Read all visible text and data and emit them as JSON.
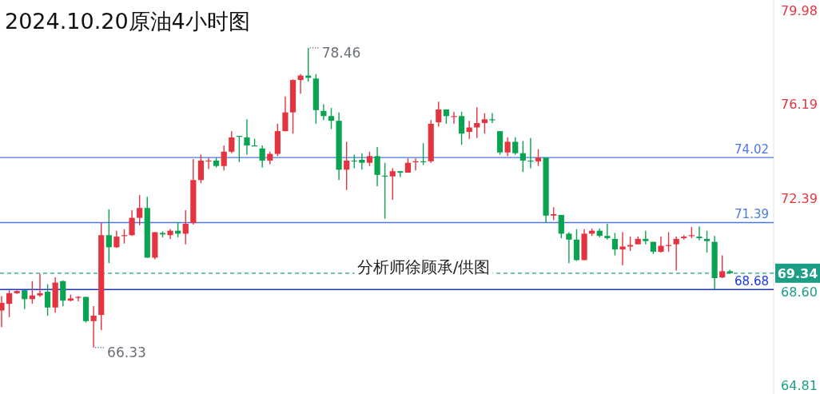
{
  "chart_data": {
    "type": "candlestick",
    "title": "2024.10.20原油4小时图",
    "annotations": [
      "分析师徐顾承/供图",
      "78.46",
      "66.33"
    ],
    "categories": [
      null,
      null,
      null,
      null,
      null,
      null,
      null,
      null,
      null,
      null,
      null,
      null,
      null,
      null,
      null,
      null,
      null,
      null,
      null,
      null,
      null,
      null,
      null,
      null,
      null,
      null,
      null,
      null,
      null,
      null,
      null,
      null,
      null,
      null,
      null,
      null,
      null,
      null,
      null,
      null,
      null,
      null,
      null,
      null,
      null,
      null,
      null,
      null,
      null,
      null,
      null,
      null,
      null,
      null,
      null,
      null,
      null,
      null,
      null,
      null,
      null,
      null,
      null,
      null,
      null,
      null,
      null,
      null,
      null,
      null,
      null,
      null,
      null,
      null,
      null,
      null,
      null,
      null,
      null,
      null,
      null,
      null,
      null,
      null,
      null,
      null,
      null,
      null,
      null,
      null,
      null,
      null,
      null,
      null,
      null,
      null
    ],
    "ohlc": [
      [
        67.83,
        68.41,
        67.16,
        68.14
      ],
      [
        68.1,
        68.65,
        67.56,
        68.53
      ],
      [
        68.53,
        68.65,
        68.5,
        68.62
      ],
      [
        68.65,
        68.65,
        67.89,
        68.29
      ],
      [
        68.29,
        69.02,
        68.1,
        68.44
      ],
      [
        68.44,
        69.32,
        68.38,
        68.53
      ],
      [
        68.59,
        68.9,
        67.62,
        67.95
      ],
      [
        67.95,
        69.17,
        67.74,
        68.96
      ],
      [
        69.02,
        69.05,
        68.01,
        68.23
      ],
      [
        68.23,
        68.47,
        68.2,
        68.32
      ],
      [
        68.35,
        68.41,
        68.2,
        68.38
      ],
      [
        68.38,
        68.38,
        67.34,
        67.4
      ],
      [
        67.4,
        68.01,
        66.33,
        67.62
      ],
      [
        67.65,
        71.37,
        67.04,
        70.88
      ],
      [
        70.88,
        71.92,
        69.75,
        70.39
      ],
      [
        70.39,
        71.06,
        70.36,
        70.82
      ],
      [
        70.85,
        71.12,
        70.54,
        70.88
      ],
      [
        70.88,
        71.89,
        70.85,
        71.58
      ],
      [
        71.58,
        72.5,
        71.28,
        71.98
      ],
      [
        71.98,
        72.43,
        69.97,
        69.97
      ],
      [
        69.97,
        71.0,
        69.9,
        71.0
      ],
      [
        70.97,
        71.03,
        70.79,
        70.91
      ],
      [
        70.88,
        71.12,
        70.73,
        71.06
      ],
      [
        71.06,
        71.4,
        70.79,
        70.94
      ],
      [
        70.94,
        71.89,
        70.51,
        71.34
      ],
      [
        71.37,
        73.96,
        71.31,
        73.11
      ],
      [
        73.11,
        74.14,
        72.98,
        73.9
      ],
      [
        73.87,
        74.02,
        73.56,
        73.9
      ],
      [
        73.9,
        74.02,
        73.62,
        73.68
      ],
      [
        73.68,
        74.51,
        73.5,
        74.26
      ],
      [
        74.26,
        75.09,
        74.2,
        74.84
      ],
      [
        74.9,
        74.9,
        73.84,
        74.87
      ],
      [
        74.84,
        75.57,
        74.14,
        74.51
      ],
      [
        74.51,
        74.78,
        74.48,
        74.48
      ],
      [
        74.39,
        74.51,
        73.62,
        73.9
      ],
      [
        73.9,
        74.26,
        73.75,
        74.17
      ],
      [
        74.17,
        75.39,
        74.08,
        75.09
      ],
      [
        75.09,
        76.49,
        75.09,
        75.85
      ],
      [
        75.85,
        77.19,
        74.99,
        77.16
      ],
      [
        77.16,
        77.4,
        76.61,
        77.34
      ],
      [
        77.34,
        78.46,
        77.1,
        77.25
      ],
      [
        77.22,
        77.4,
        75.39,
        75.94
      ],
      [
        75.91,
        76.18,
        75.54,
        75.7
      ],
      [
        75.7,
        76.03,
        75.18,
        75.51
      ],
      [
        75.51,
        75.85,
        73.11,
        73.53
      ],
      [
        73.53,
        74.66,
        72.71,
        73.9
      ],
      [
        73.9,
        74.14,
        73.59,
        73.87
      ],
      [
        73.93,
        74.2,
        73.53,
        73.81
      ],
      [
        73.81,
        74.26,
        73.68,
        74.08
      ],
      [
        74.08,
        74.45,
        72.86,
        73.32
      ],
      [
        73.29,
        73.81,
        71.55,
        73.26
      ],
      [
        73.26,
        73.59,
        72.31,
        73.47
      ],
      [
        73.47,
        73.47,
        73.23,
        73.41
      ],
      [
        73.41,
        73.99,
        73.41,
        73.81
      ],
      [
        73.84,
        73.99,
        73.5,
        73.87
      ],
      [
        73.87,
        74.6,
        73.72,
        73.84
      ],
      [
        73.87,
        75.54,
        73.81,
        75.39
      ],
      [
        75.45,
        76.28,
        75.27,
        75.97
      ],
      [
        75.97,
        75.97,
        75.39,
        75.7
      ],
      [
        75.67,
        75.88,
        75.39,
        75.7
      ],
      [
        75.7,
        75.88,
        74.54,
        74.99
      ],
      [
        75.06,
        75.51,
        74.78,
        75.24
      ],
      [
        75.24,
        76.06,
        74.81,
        75.42
      ],
      [
        75.42,
        75.82,
        74.99,
        75.57
      ],
      [
        75.57,
        75.82,
        75.42,
        75.54
      ],
      [
        75.09,
        75.09,
        74.14,
        74.23
      ],
      [
        74.23,
        74.84,
        74.08,
        74.66
      ],
      [
        74.66,
        74.84,
        74.14,
        74.2
      ],
      [
        74.2,
        74.69,
        73.44,
        73.9
      ],
      [
        73.9,
        74.81,
        73.59,
        73.87
      ],
      [
        73.87,
        74.36,
        73.68,
        74.02
      ],
      [
        74.02,
        74.02,
        71.37,
        71.67
      ],
      [
        71.67,
        72.01,
        71.49,
        71.73
      ],
      [
        71.7,
        71.7,
        70.76,
        70.94
      ],
      [
        70.94,
        71.0,
        69.75,
        70.7
      ],
      [
        70.7,
        71.12,
        69.84,
        69.87
      ],
      [
        69.87,
        71.12,
        69.87,
        70.94
      ],
      [
        70.94,
        71.15,
        70.85,
        71.06
      ],
      [
        71.06,
        71.15,
        70.79,
        70.85
      ],
      [
        70.85,
        71.34,
        70.7,
        70.76
      ],
      [
        70.73,
        70.97,
        70.06,
        70.3
      ],
      [
        70.3,
        71.0,
        69.66,
        70.42
      ],
      [
        70.42,
        70.82,
        70.24,
        70.48
      ],
      [
        70.51,
        70.82,
        70.51,
        70.73
      ],
      [
        70.73,
        71.06,
        70.51,
        70.64
      ],
      [
        70.61,
        70.61,
        70.12,
        70.21
      ],
      [
        70.21,
        70.82,
        70.18,
        70.45
      ],
      [
        70.45,
        71.0,
        70.21,
        70.48
      ],
      [
        70.51,
        70.82,
        69.45,
        70.73
      ],
      [
        70.76,
        70.88,
        70.7,
        70.82
      ],
      [
        70.85,
        71.21,
        70.76,
        70.88
      ],
      [
        70.82,
        71.24,
        70.67,
        70.76
      ],
      [
        70.73,
        71.06,
        70.18,
        70.64
      ],
      [
        70.61,
        70.85,
        68.68,
        69.14
      ],
      [
        69.17,
        70.06,
        69.14,
        69.42
      ],
      [
        69.42,
        69.48,
        69.32,
        69.34
      ]
    ],
    "ylim": [
      64.45,
      80.4
    ],
    "yticks": [
      79.98,
      76.19,
      72.39,
      {
        "value": 68.6,
        "label": "68.60"
      },
      64.81
    ],
    "ref_lines": [
      {
        "axis": "y",
        "value": 74.02,
        "label": "74.02",
        "color": "#4a78e6"
      },
      {
        "axis": "y",
        "value": 71.39,
        "label": "71.39",
        "color": "#4a78e6"
      },
      {
        "axis": "y",
        "value": 68.68,
        "label": "68.68",
        "color": "#1636e8"
      },
      {
        "axis": "y",
        "value": 69.34,
        "label": "69.34",
        "color": "#1a9f86",
        "line_style": "dashed"
      }
    ]
  }
}
